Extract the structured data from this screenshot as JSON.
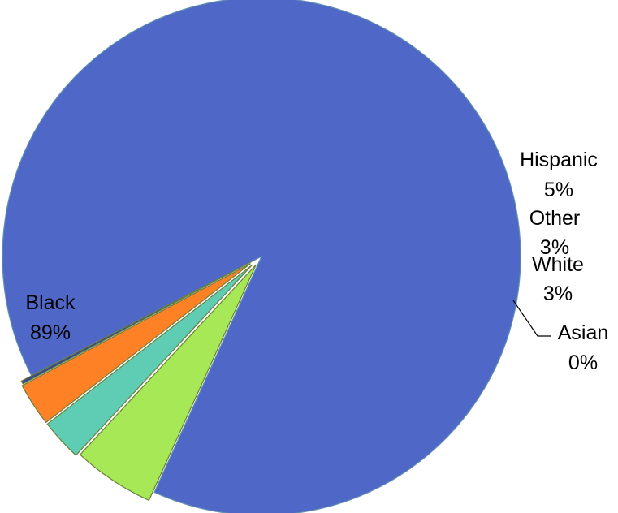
{
  "chart_data": {
    "type": "pie",
    "slices": [
      {
        "label": "Black",
        "pct_label": "89%",
        "value": 89.4,
        "color": "#4F67C6"
      },
      {
        "label": "Hispanic",
        "pct_label": "5%",
        "value": 5.1,
        "color": "#A6E855"
      },
      {
        "label": "Other",
        "pct_label": "3%",
        "value": 2.6,
        "color": "#5ECDB3"
      },
      {
        "label": "White",
        "pct_label": "3%",
        "value": 2.7,
        "color": "#FF8126"
      },
      {
        "label": "Asian",
        "pct_label": "0%",
        "value": 0.2,
        "color": "#3B4A8C"
      }
    ],
    "legend": "none",
    "data_labels": "category-and-percent"
  }
}
